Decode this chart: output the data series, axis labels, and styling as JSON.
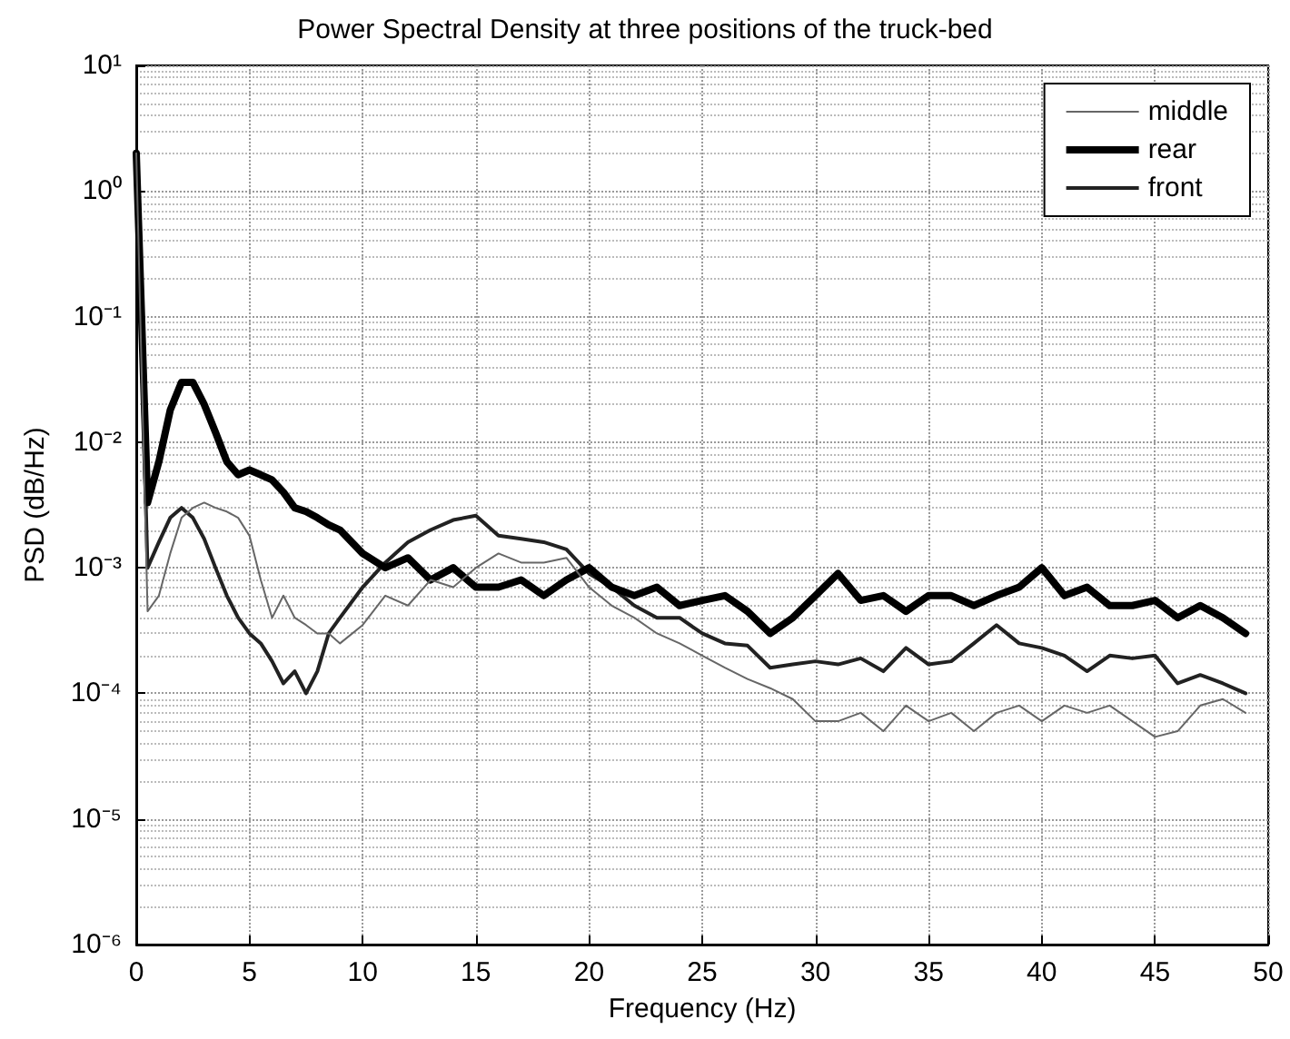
{
  "chart_data": {
    "type": "line",
    "title": "Power Spectral Density at three positions of the truck-bed",
    "xlabel": "Frequency (Hz)",
    "ylabel": "PSD (dB/Hz)",
    "x": [
      0,
      0.5,
      1,
      1.5,
      2,
      2.5,
      3,
      3.5,
      4,
      4.5,
      5,
      5.5,
      6,
      6.5,
      7,
      7.5,
      8,
      8.5,
      9,
      10,
      11,
      12,
      13,
      14,
      15,
      16,
      17,
      18,
      19,
      20,
      21,
      22,
      23,
      24,
      25,
      26,
      27,
      28,
      29,
      30,
      31,
      32,
      33,
      34,
      35,
      36,
      37,
      38,
      39,
      40,
      41,
      42,
      43,
      44,
      45,
      46,
      47,
      48,
      49
    ],
    "series": [
      {
        "name": "middle",
        "color": "#666666",
        "values": [
          2,
          0.00045,
          0.0006,
          0.0013,
          0.0025,
          0.003,
          0.0033,
          0.003,
          0.0028,
          0.0025,
          0.0018,
          0.0008,
          0.0004,
          0.0006,
          0.0004,
          0.00035,
          0.0003,
          0.0003,
          0.00025,
          0.00035,
          0.0006,
          0.0005,
          0.0008,
          0.0007,
          0.001,
          0.0013,
          0.0011,
          0.0011,
          0.0012,
          0.0007,
          0.0005,
          0.0004,
          0.0003,
          0.00025,
          0.0002,
          0.00016,
          0.00013,
          0.00011,
          9e-05,
          6e-05,
          6e-05,
          7e-05,
          5e-05,
          8e-05,
          6e-05,
          7e-05,
          5e-05,
          7e-05,
          8e-05,
          6e-05,
          8e-05,
          7e-05,
          8e-05,
          6e-05,
          4.5e-05,
          5e-05,
          8e-05,
          9e-05,
          7e-05
        ]
      },
      {
        "name": "rear",
        "color": "#000000",
        "values": [
          2,
          0.0033,
          0.007,
          0.018,
          0.03,
          0.03,
          0.02,
          0.012,
          0.007,
          0.0055,
          0.006,
          0.0055,
          0.005,
          0.004,
          0.003,
          0.0028,
          0.0025,
          0.0022,
          0.002,
          0.0013,
          0.001,
          0.0012,
          0.0008,
          0.001,
          0.0007,
          0.0007,
          0.0008,
          0.0006,
          0.0008,
          0.001,
          0.0007,
          0.0006,
          0.0007,
          0.0005,
          0.00055,
          0.0006,
          0.00045,
          0.0003,
          0.0004,
          0.0006,
          0.0009,
          0.00055,
          0.0006,
          0.00045,
          0.0006,
          0.0006,
          0.0005,
          0.0006,
          0.0007,
          0.001,
          0.0006,
          0.0007,
          0.0005,
          0.0005,
          0.00055,
          0.0004,
          0.0005,
          0.0004,
          0.0003
        ]
      },
      {
        "name": "front",
        "color": "#222222",
        "values": [
          2,
          0.001,
          0.0016,
          0.0025,
          0.003,
          0.0025,
          0.0017,
          0.001,
          0.0006,
          0.0004,
          0.0003,
          0.00025,
          0.00018,
          0.00012,
          0.00015,
          0.0001,
          0.00015,
          0.0003,
          0.0004,
          0.0007,
          0.0011,
          0.0016,
          0.002,
          0.0024,
          0.0026,
          0.0018,
          0.0017,
          0.0016,
          0.0014,
          0.0009,
          0.0007,
          0.0005,
          0.0004,
          0.0004,
          0.0003,
          0.00025,
          0.00024,
          0.00016,
          0.00017,
          0.00018,
          0.00017,
          0.00019,
          0.00015,
          0.00023,
          0.00017,
          0.00018,
          0.00025,
          0.00035,
          0.00025,
          0.00023,
          0.0002,
          0.00015,
          0.0002,
          0.00019,
          0.0002,
          0.00012,
          0.00014,
          0.00012,
          0.0001
        ]
      }
    ],
    "xlim": [
      0,
      50
    ],
    "xticks": [
      0,
      5,
      10,
      15,
      20,
      25,
      30,
      35,
      40,
      45,
      50
    ],
    "ylim": [
      1e-06,
      10
    ],
    "yticks": [
      {
        "value": 1e-06,
        "label": "10⁻⁶"
      },
      {
        "value": 1e-05,
        "label": "10⁻⁵"
      },
      {
        "value": 0.0001,
        "label": "10⁻⁴"
      },
      {
        "value": 0.001,
        "label": "10⁻³"
      },
      {
        "value": 0.01,
        "label": "10⁻²"
      },
      {
        "value": 0.1,
        "label": "10⁻¹"
      },
      {
        "value": 1,
        "label": "10⁰"
      },
      {
        "value": 10,
        "label": "10¹"
      }
    ],
    "log": "y",
    "grid": true,
    "legend": "top right",
    "marker": "none",
    "line_style": "solid"
  }
}
